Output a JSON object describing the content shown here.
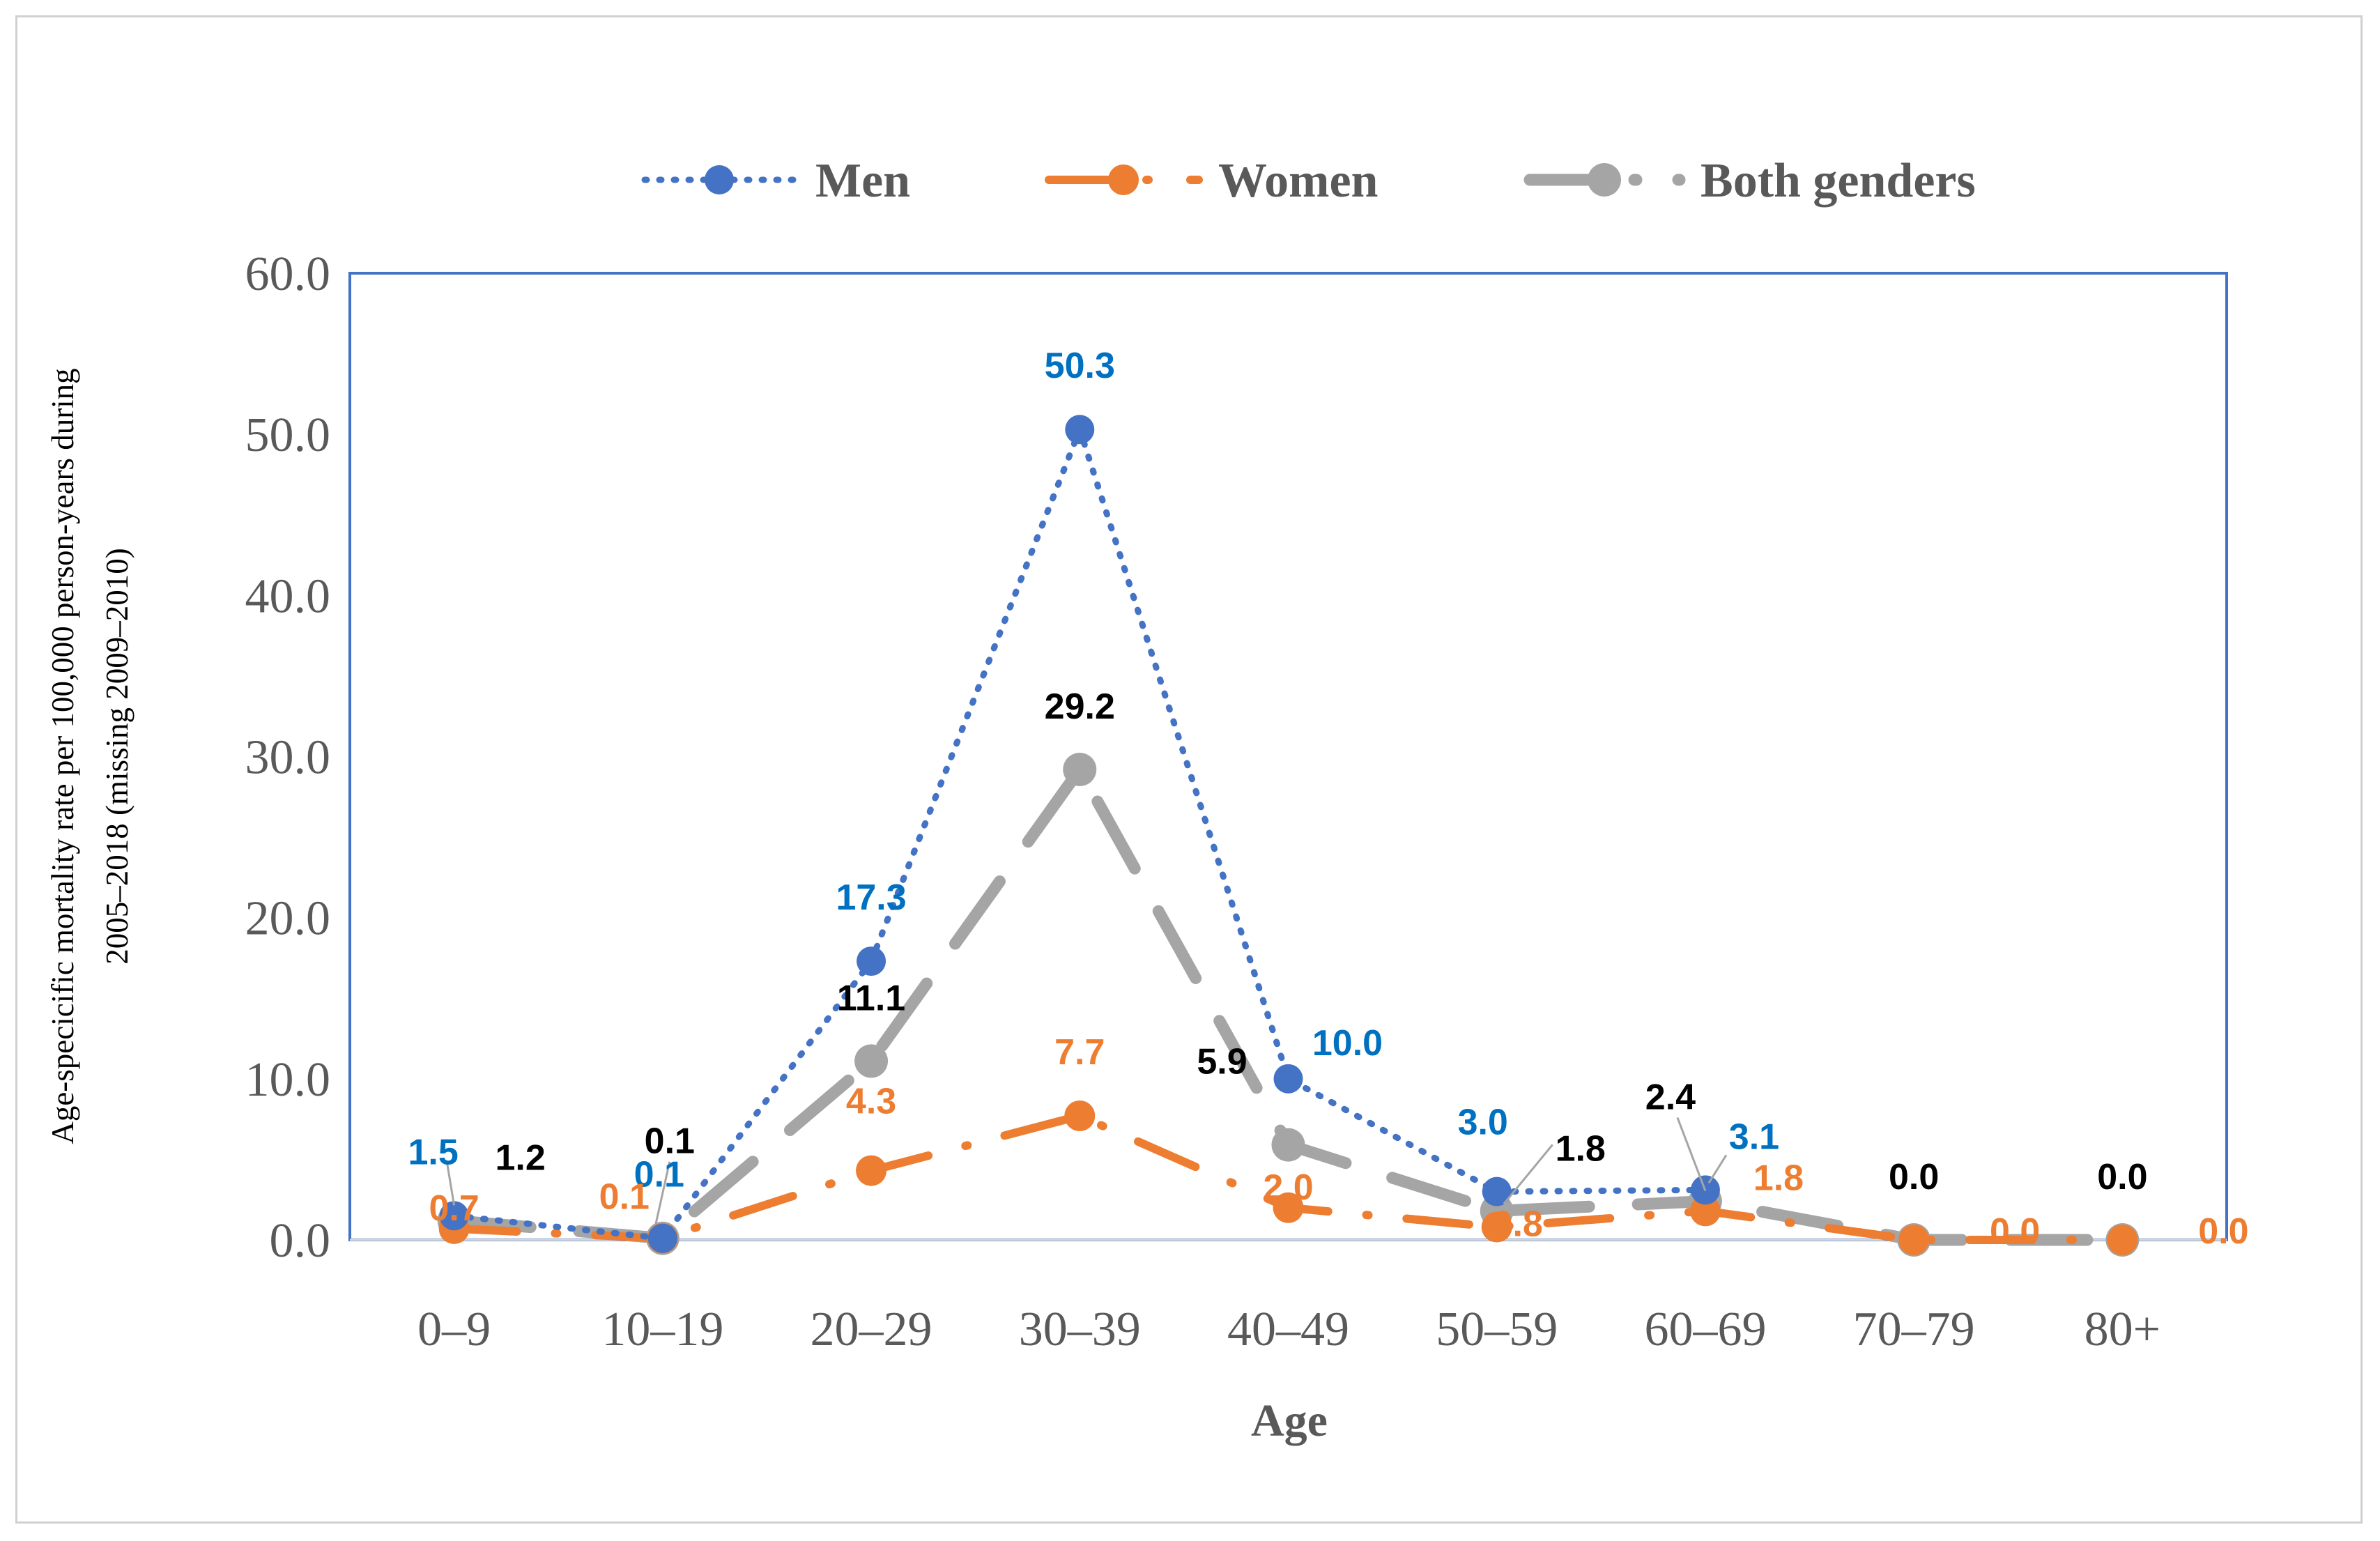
{
  "chart_data": {
    "type": "line",
    "title": "",
    "xlabel": "Age",
    "ylabel_line1": "Age-specicific mortality rate per 100,000 person-years during",
    "ylabel_line2": "2005–2018 (missing 2009–2010)",
    "ylim": [
      0,
      60
    ],
    "yticks": [
      "0.0",
      "10.0",
      "20.0",
      "30.0",
      "40.0",
      "50.0",
      "60.0"
    ],
    "categories": [
      "0–9",
      "10–19",
      "20–29",
      "30–39",
      "40–49",
      "50–59",
      "60–69",
      "70–79",
      "80+"
    ],
    "legend_position": "top",
    "series": [
      {
        "name": "Men",
        "color": "#4472C4",
        "label_color": "#0070C0",
        "style": "dotted",
        "values": [
          1.5,
          0.1,
          17.3,
          50.3,
          10.0,
          3.0,
          3.1,
          null,
          null
        ],
        "labels": [
          "1.5",
          "0.1",
          "17.3",
          "50.3",
          "10.0",
          "3.0",
          "3.1",
          "",
          ""
        ]
      },
      {
        "name": "Women",
        "color": "#ED7D31",
        "label_color": "#ED7D31",
        "style": "dash-dot",
        "values": [
          0.7,
          0.1,
          4.3,
          7.7,
          2.0,
          0.8,
          1.8,
          0.0,
          0.0
        ],
        "labels": [
          "0.7",
          "0.1",
          "4.3",
          "7.7",
          "2.0",
          "0.8",
          "1.8",
          "0.0",
          "0.0"
        ]
      },
      {
        "name": "Both genders",
        "color": "#A5A5A5",
        "label_color": "#000000",
        "style": "long-dash",
        "values": [
          1.2,
          0.1,
          11.1,
          29.2,
          5.9,
          1.8,
          2.4,
          0.0,
          0.0
        ],
        "labels": [
          "1.2",
          "0.1",
          "11.1",
          "29.2",
          "5.9",
          "1.8",
          "2.4",
          "0.0",
          "0.0"
        ]
      }
    ]
  }
}
